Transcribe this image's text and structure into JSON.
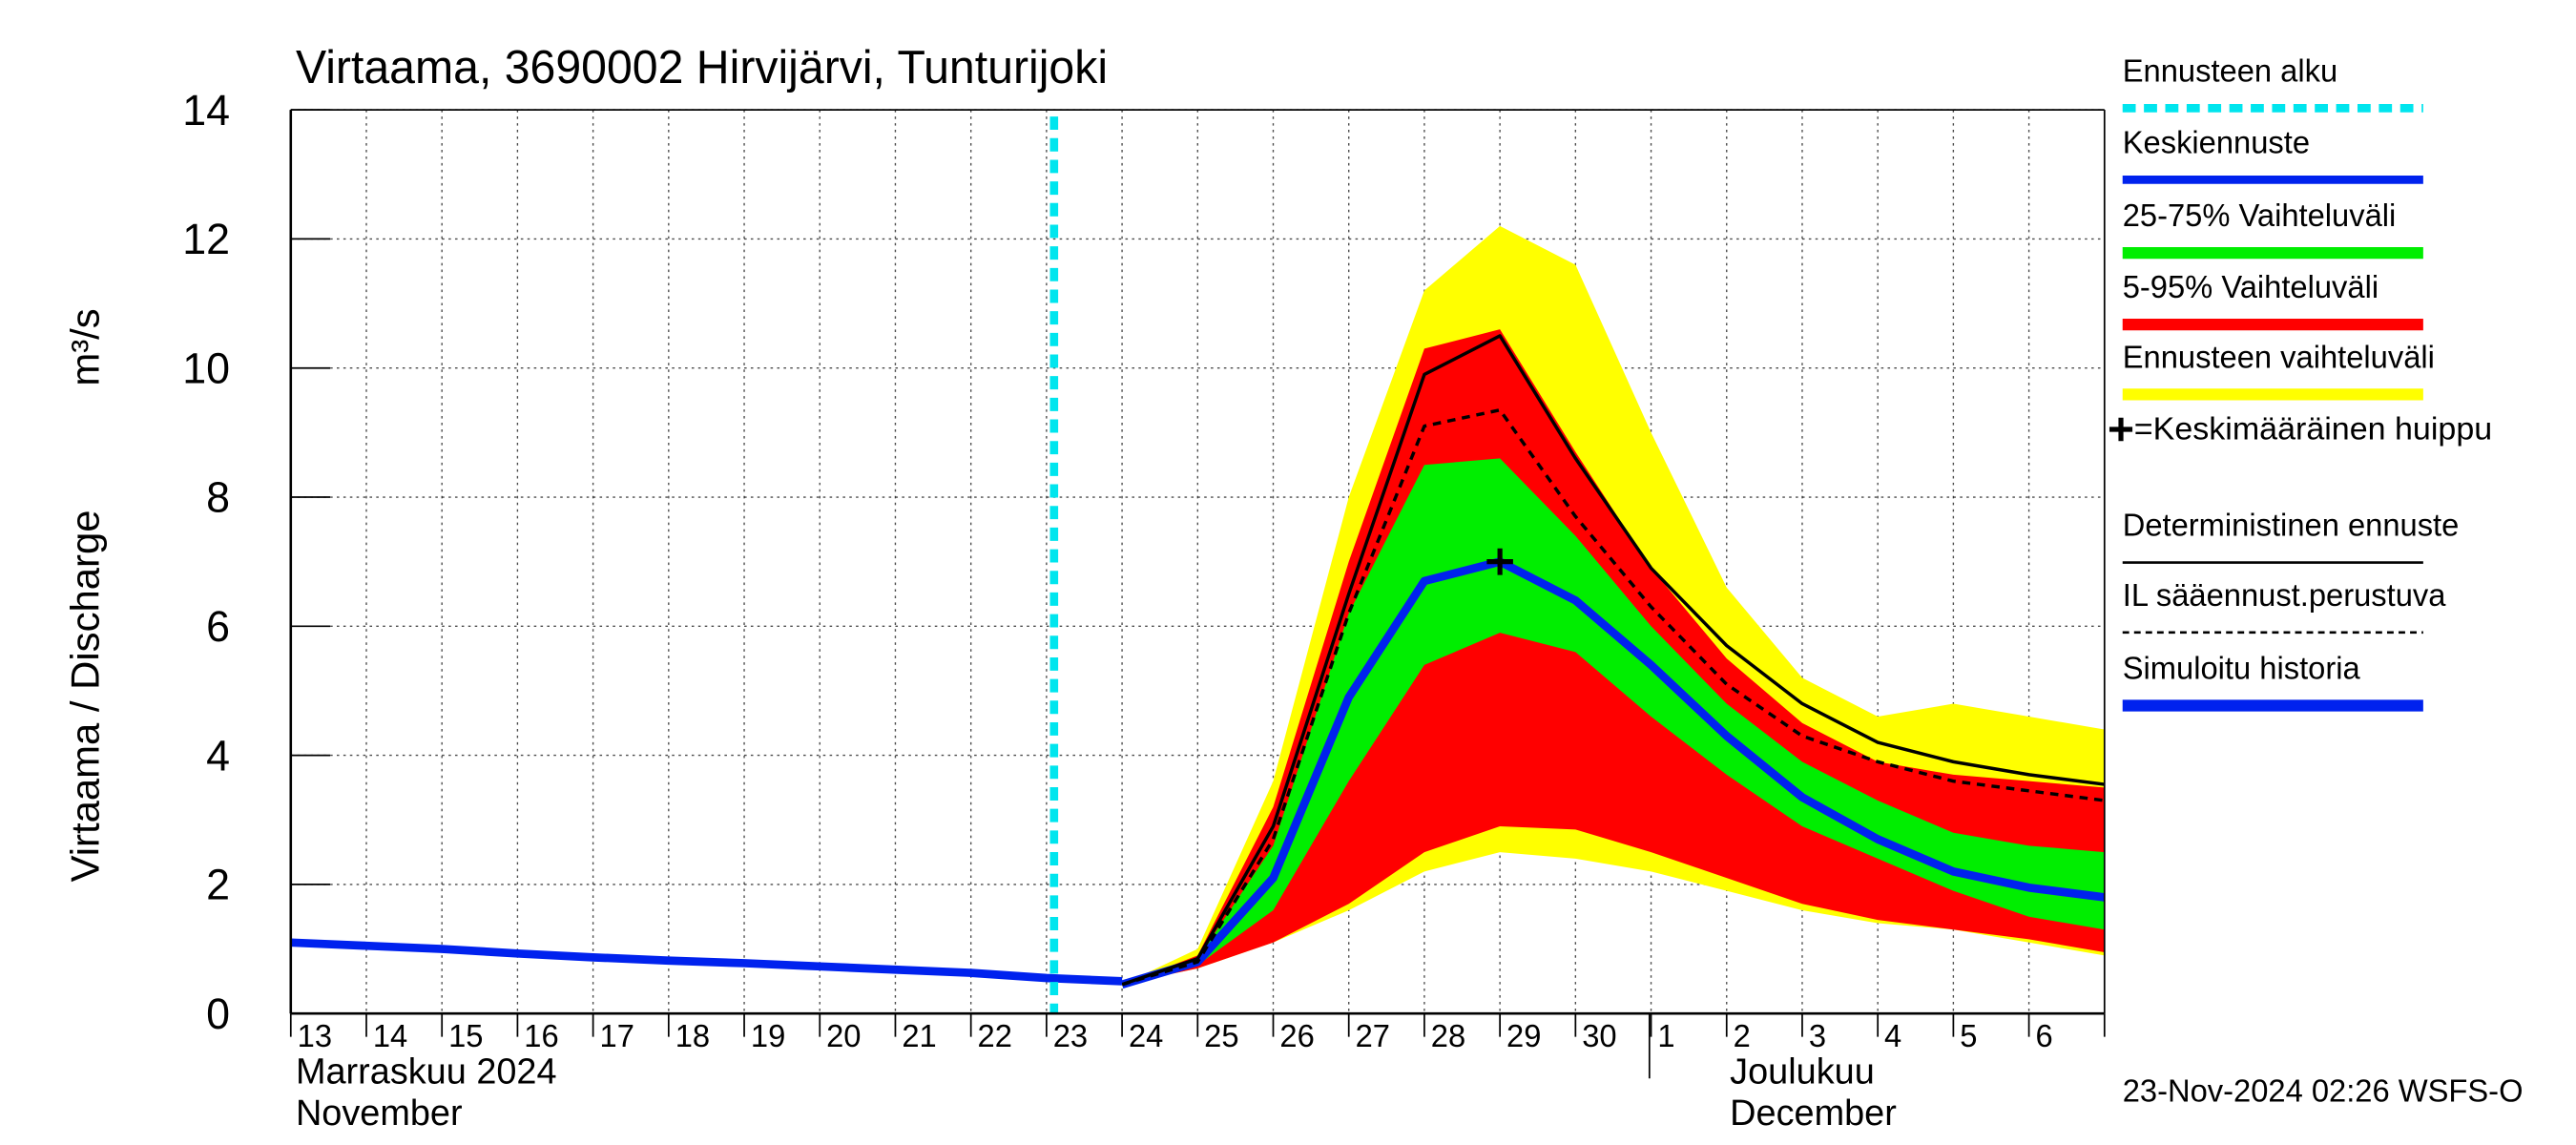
{
  "chart_data": {
    "type": "line",
    "title": "Virtaama, 3690002 Hirvijärvi, Tunturijoki",
    "ylabel": "Virtaama / Discharge",
    "yunit": "m³/s",
    "categories": [
      "13",
      "14",
      "15",
      "16",
      "17",
      "18",
      "19",
      "20",
      "21",
      "22",
      "23",
      "24",
      "25",
      "26",
      "27",
      "28",
      "29",
      "30",
      "1",
      "2",
      "3",
      "4",
      "5",
      "6",
      null
    ],
    "months": [
      {
        "label": "Marraskuu 2024",
        "label_en": "November"
      },
      {
        "label": "Joulukuu",
        "label_en": "December"
      }
    ],
    "ylim": [
      0,
      14
    ],
    "yticks": [
      0,
      2,
      4,
      6,
      8,
      10,
      12,
      14
    ],
    "grid": true,
    "forecast_start": {
      "name": "Ennusteen alku",
      "color": "#00e5ee",
      "x": 10.1
    },
    "bands": [
      {
        "name": "Ennusteen vaihteluväli",
        "color": "#ffff00",
        "low": [
          null,
          null,
          null,
          null,
          null,
          null,
          null,
          null,
          null,
          null,
          null,
          0.45,
          0.7,
          1.1,
          1.6,
          2.2,
          2.5,
          2.4,
          2.2,
          1.9,
          1.6,
          1.4,
          1.3,
          1.1,
          0.9
        ],
        "high": [
          null,
          null,
          null,
          null,
          null,
          null,
          null,
          null,
          null,
          null,
          null,
          0.45,
          1.0,
          3.6,
          8.0,
          11.2,
          12.2,
          11.6,
          9.0,
          6.6,
          5.2,
          4.6,
          4.8,
          4.6,
          4.4
        ]
      },
      {
        "name": "5-95% Vaihteluväli",
        "color": "#ff0000",
        "low": [
          null,
          null,
          null,
          null,
          null,
          null,
          null,
          null,
          null,
          null,
          null,
          0.45,
          0.7,
          1.1,
          1.7,
          2.5,
          2.9,
          2.85,
          2.5,
          2.1,
          1.7,
          1.45,
          1.3,
          1.15,
          0.95
        ],
        "high": [
          null,
          null,
          null,
          null,
          null,
          null,
          null,
          null,
          null,
          null,
          null,
          0.45,
          0.9,
          3.2,
          7.0,
          10.3,
          10.6,
          8.7,
          6.9,
          5.5,
          4.5,
          3.9,
          3.7,
          3.6,
          3.5
        ]
      },
      {
        "name": "25-75% Vaihteluväli",
        "color": "#00ee00",
        "low": [
          null,
          null,
          null,
          null,
          null,
          null,
          null,
          null,
          null,
          null,
          null,
          0.45,
          0.75,
          1.6,
          3.6,
          5.4,
          5.9,
          5.6,
          4.6,
          3.7,
          2.9,
          2.4,
          1.9,
          1.5,
          1.3
        ],
        "high": [
          null,
          null,
          null,
          null,
          null,
          null,
          null,
          null,
          null,
          null,
          null,
          0.45,
          0.85,
          2.6,
          6.2,
          8.5,
          8.6,
          7.4,
          6.0,
          4.8,
          3.9,
          3.3,
          2.8,
          2.6,
          2.5
        ]
      }
    ],
    "series": [
      {
        "name": "Keskiennuste",
        "color": "#0022ee",
        "width": 5,
        "dash": false,
        "values": [
          null,
          null,
          null,
          null,
          null,
          null,
          null,
          null,
          null,
          null,
          null,
          0.45,
          0.8,
          2.1,
          4.9,
          6.7,
          7.0,
          6.4,
          5.4,
          4.3,
          3.35,
          2.7,
          2.2,
          1.95,
          1.8
        ]
      },
      {
        "name": "Deterministinen ennuste",
        "color": "#000000",
        "width": 2,
        "dash": false,
        "values": [
          null,
          null,
          null,
          null,
          null,
          null,
          null,
          null,
          null,
          null,
          null,
          0.45,
          0.85,
          2.9,
          6.5,
          9.9,
          10.5,
          8.6,
          6.9,
          5.7,
          4.8,
          4.2,
          3.9,
          3.7,
          3.55
        ]
      },
      {
        "name": "IL sääennust.perustuva",
        "color": "#000000",
        "width": 2,
        "dash": true,
        "values": [
          null,
          null,
          null,
          null,
          null,
          null,
          null,
          null,
          null,
          null,
          null,
          0.45,
          0.8,
          2.7,
          6.2,
          9.1,
          9.35,
          7.7,
          6.3,
          5.1,
          4.3,
          3.9,
          3.6,
          3.45,
          3.3
        ]
      },
      {
        "name": "Simuloitu historia",
        "color": "#0022ee",
        "width": 5,
        "dash": false,
        "values": [
          1.1,
          1.05,
          1.0,
          0.93,
          0.87,
          0.82,
          0.78,
          0.73,
          0.68,
          0.63,
          0.55,
          0.5,
          null,
          null,
          null,
          null,
          null,
          null,
          null,
          null,
          null,
          null,
          null,
          null,
          null
        ]
      }
    ],
    "peak": {
      "name": "=Keskimääräinen huippu",
      "values": [
        null,
        null,
        null,
        null,
        null,
        null,
        null,
        null,
        null,
        null,
        null,
        null,
        null,
        null,
        null,
        null,
        7.0,
        null,
        null,
        null,
        null,
        null,
        null,
        null,
        null
      ]
    },
    "timestamp": "23-Nov-2024 02:26 WSFS-O"
  }
}
